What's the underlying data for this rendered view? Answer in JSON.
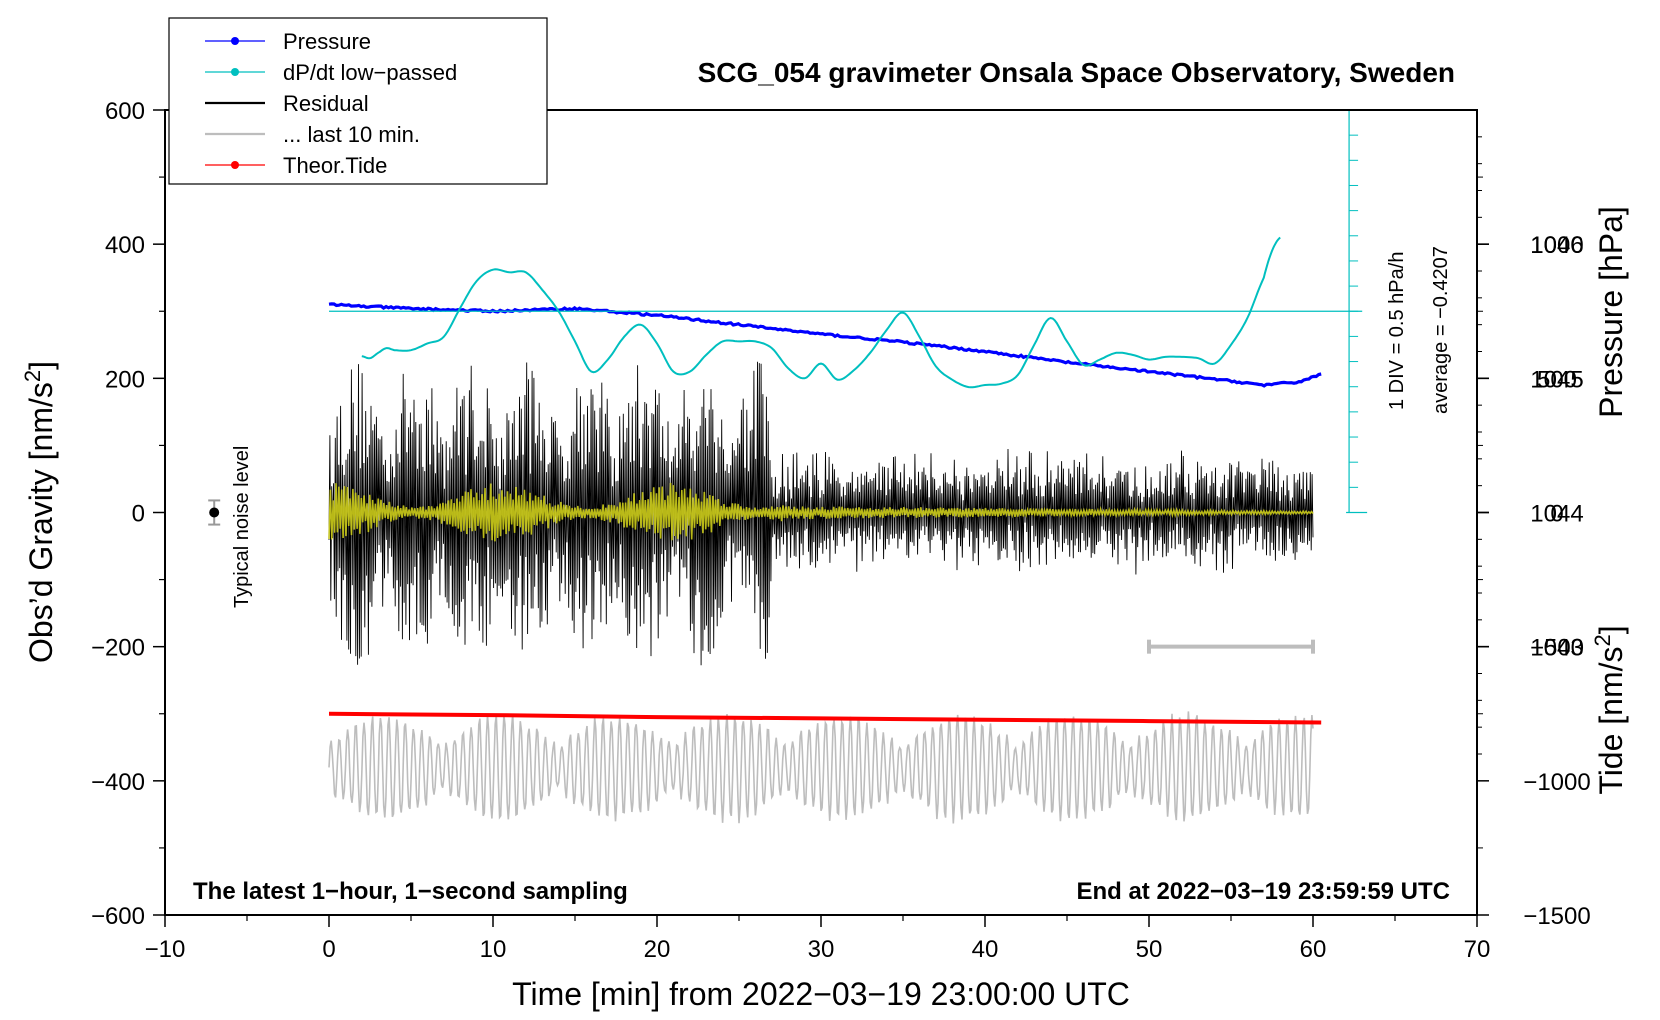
{
  "chart_data": {
    "type": "line",
    "title": "SCG_054 gravimeter Onsala Space Observatory, Sweden",
    "xlabel": "Time [min] from 2022−03−19 23:00:00 UTC",
    "ylabel_left": "Obs’d Gravity [nm/s",
    "ylabel_sup": "2",
    "ylabel_close": "]",
    "ylabel_right_pressure": "Pressure [hPa]",
    "ylabel_right_tide": "Tide [nm/s",
    "xlim": [
      -10,
      70
    ],
    "ylim": [
      -600,
      600
    ],
    "pressure_lim": [
      1041,
      1047
    ],
    "tide_lim": [
      -1500,
      1500
    ],
    "x_ticks": [
      {
        "v": -10,
        "label": "−10"
      },
      {
        "v": 0,
        "label": "0"
      },
      {
        "v": 10,
        "label": "10"
      },
      {
        "v": 20,
        "label": "20"
      },
      {
        "v": 30,
        "label": "30"
      },
      {
        "v": 40,
        "label": "40"
      },
      {
        "v": 50,
        "label": "50"
      },
      {
        "v": 60,
        "label": "60"
      },
      {
        "v": 70,
        "label": "70"
      }
    ],
    "y_ticks": [
      {
        "v": 600,
        "label": "600"
      },
      {
        "v": 400,
        "label": "400"
      },
      {
        "v": 200,
        "label": "200"
      },
      {
        "v": 0,
        "label": "0"
      },
      {
        "v": -200,
        "label": "−200"
      },
      {
        "v": -400,
        "label": "−400"
      },
      {
        "v": -600,
        "label": "−600"
      }
    ],
    "pressure_ticks": [
      {
        "v": 1046,
        "label": "1046"
      },
      {
        "v": 1045,
        "label": "1045"
      },
      {
        "v": 1044,
        "label": "1044"
      },
      {
        "v": 1043,
        "label": "1043"
      }
    ],
    "tide_ticks": [
      {
        "v": 1000,
        "label": "1000"
      },
      {
        "v": 500,
        "label": "500"
      },
      {
        "v": 0,
        "label": "0"
      },
      {
        "v": -500,
        "label": "−500"
      },
      {
        "v": -1000,
        "label": "−1000"
      },
      {
        "v": -1500,
        "label": "−1500"
      }
    ],
    "legend": [
      {
        "label": "Pressure",
        "color": "#0000ff",
        "marker": true
      },
      {
        "label": "dP/dt low−passed",
        "color": "#00bfbf",
        "marker": true
      },
      {
        "label": "Residual",
        "color": "#000000",
        "marker": false
      },
      {
        "label": "... last 10 min.",
        "color": "#bdbdbd",
        "marker": false
      },
      {
        "label": "Theor.Tide",
        "color": "#ff0000",
        "marker": true
      }
    ],
    "legend_position": "top-left",
    "pressure_series": {
      "color": "#0000ff",
      "x": [
        0,
        5,
        10,
        15,
        20,
        25,
        30,
        35,
        40,
        45,
        50,
        55,
        57,
        59,
        60.5
      ],
      "y": [
        1045.55,
        1045.52,
        1045.5,
        1045.52,
        1045.47,
        1045.4,
        1045.33,
        1045.27,
        1045.2,
        1045.12,
        1045.05,
        1044.98,
        1044.95,
        1044.97,
        1045.03
      ]
    },
    "dpdt_series": {
      "color": "#00bfbf",
      "x": [
        2,
        2.5,
        3,
        3.5,
        4,
        5,
        6,
        7,
        8,
        9,
        10,
        11,
        12,
        13,
        14,
        15,
        16,
        17,
        18,
        19,
        20,
        21,
        22,
        23,
        24,
        25,
        26,
        27,
        28,
        29,
        30,
        31,
        32,
        33,
        34,
        35,
        36,
        37,
        38,
        39,
        40,
        41,
        42,
        43,
        44,
        45,
        46,
        47,
        48,
        49,
        50,
        51,
        52,
        53,
        54,
        55,
        56,
        57,
        57.5,
        58
      ],
      "y": [
        233,
        230,
        238,
        245,
        242,
        242,
        252,
        262,
        305,
        345,
        362,
        358,
        358,
        332,
        300,
        255,
        210,
        228,
        262,
        280,
        252,
        210,
        210,
        235,
        255,
        255,
        255,
        245,
        215,
        200,
        222,
        198,
        212,
        238,
        272,
        298,
        262,
        218,
        198,
        187,
        190,
        192,
        205,
        250,
        290,
        255,
        220,
        228,
        238,
        235,
        228,
        232,
        232,
        230,
        222,
        250,
        290,
        350,
        390,
        410
      ]
    },
    "dpdt_reference_line": 300,
    "dpdt_scale_text": "1 DIV = 0.5 hPa/h",
    "dpdt_average_text": "average = −0.4207",
    "residual_series": {
      "color": "#000000",
      "x_range": [
        0,
        60
      ],
      "amplitude_early_nm_s2": 230,
      "amplitude_late_nm_s2": 80
    },
    "last10_series": {
      "color": "#bdbdbd",
      "x_range": [
        0,
        60
      ],
      "center_nm_s2": -380
    },
    "lowpass_series": {
      "color": "#cccc1a",
      "x_range": [
        0,
        60
      ]
    },
    "tide_series": {
      "color": "#ff0000",
      "x": [
        0,
        10,
        20,
        30,
        40,
        50,
        60.5
      ],
      "y": [
        -300,
        -302,
        -305,
        -307,
        -309,
        -311,
        -313
      ]
    },
    "last10_bar": {
      "x": [
        50,
        60
      ],
      "y": -200
    },
    "noise_marker": {
      "x": -7,
      "y": 0,
      "err": 18,
      "label": "Typical noise level"
    },
    "bottom_left_text": "The latest 1−hour, 1−second sampling",
    "bottom_right_text": "End at 2022−03−19 23:59:59 UTC"
  }
}
